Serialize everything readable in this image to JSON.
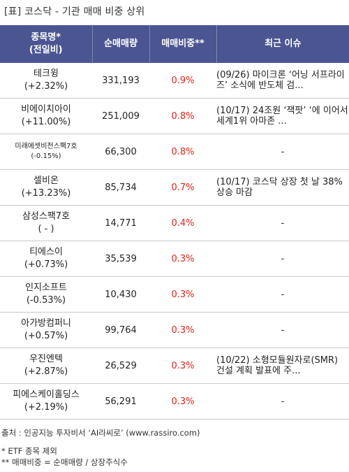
{
  "title": "[표] 코스닥 - 기관 매매 비중 상위",
  "table": {
    "headers": {
      "name_line1": "종목명*",
      "name_line2": "(전일비)",
      "volume": "순매매량",
      "ratio": "매매비중**",
      "issue": "최근 이슈"
    },
    "rows": [
      {
        "name": "테크윙",
        "change": "(+2.32%)",
        "volume": "331,193",
        "ratio": "0.9%",
        "issue": "(09/26) 마이크론 ‘어닝 서프라이즈’ 소식에 반도체 검..."
      },
      {
        "name": "비에이치아이",
        "change": "(+11.00%)",
        "volume": "251,009",
        "ratio": "0.8%",
        "issue": "(10/17) 24조원 ‘잭팟’ ‘에 이어서 세계1위 아마존 ..."
      },
      {
        "name": "미래에셋비전스팩7호",
        "change": "(-0.15%)",
        "volume": "66,300",
        "ratio": "0.8%",
        "issue": "-"
      },
      {
        "name": "셀비온",
        "change": "(+13.23%)",
        "volume": "85,734",
        "ratio": "0.7%",
        "issue": "(10/17) 코스닥 상장 첫 날 38% 상승 마감"
      },
      {
        "name": "삼성스팩7호",
        "change": "( - )",
        "volume": "14,771",
        "ratio": "0.4%",
        "issue": "-"
      },
      {
        "name": "티에스이",
        "change": "(+0.73%)",
        "volume": "35,539",
        "ratio": "0.3%",
        "issue": "-"
      },
      {
        "name": "인지소프트",
        "change": "(-0.53%)",
        "volume": "10,430",
        "ratio": "0.3%",
        "issue": "-"
      },
      {
        "name": "아가방컴퍼니",
        "change": "(+0.57%)",
        "volume": "99,764",
        "ratio": "0.3%",
        "issue": "-"
      },
      {
        "name": "우진엔텍",
        "change": "(+2.87%)",
        "volume": "26,529",
        "ratio": "0.3%",
        "issue": "(10/22) 소형모듈원자로(SMR) 건설 계획 발표에 주..."
      },
      {
        "name": "피에스케이홀딩스",
        "change": "(+2.19%)",
        "volume": "56,291",
        "ratio": "0.3%",
        "issue": "-"
      }
    ]
  },
  "footer": {
    "source": "출처 : 인공지능 투자비서 ‘AI라씨로’ (www.rassiro.com)",
    "note1": "* ETF 종목 제외",
    "note2": "** 매매비중 = 순매매량 / 상장주식수"
  },
  "colors": {
    "header_bg": "#4a5591",
    "ratio_red": "#e0231b"
  }
}
